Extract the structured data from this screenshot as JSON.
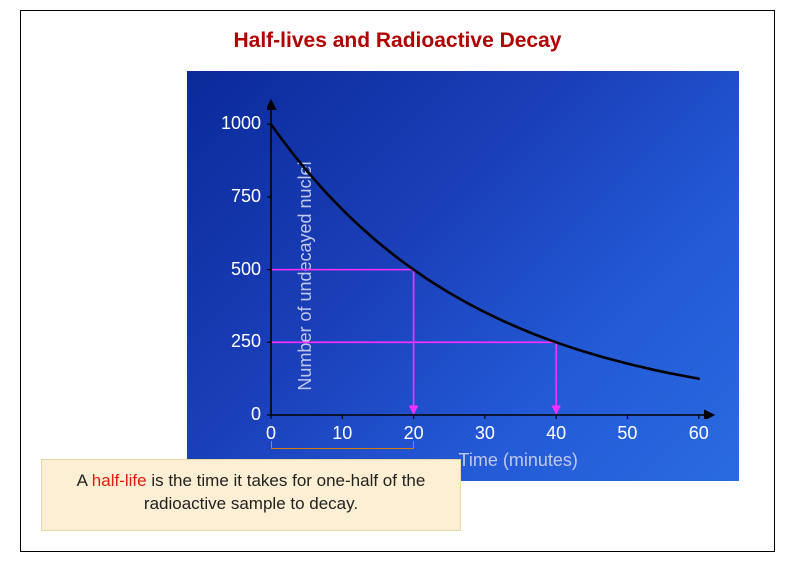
{
  "title": "Half-lives and Radioactive Decay",
  "title_fontsize": 21,
  "title_color": "#b00000",
  "chart": {
    "type": "line",
    "bg_gradient_from": "#0b2a9a",
    "bg_gradient_to": "#2a6be0",
    "xlabel": "Time (minutes)",
    "ylabel": "Number of undecayed nuclei",
    "axis_label_color": "#c2c8e8",
    "axis_label_fontsize": 18,
    "tick_color": "#ffffff",
    "tick_fontsize": 18,
    "axis_line_color": "#000000",
    "axis_line_width": 1.6,
    "arrowheads": true,
    "xlim": [
      0,
      62
    ],
    "ylim": [
      0,
      1080
    ],
    "xticks": [
      0,
      10,
      20,
      30,
      40,
      50,
      60
    ],
    "yticks": [
      0,
      250,
      500,
      750,
      1000
    ],
    "curve": {
      "color": "#000000",
      "width": 2.6,
      "type": "exponential_decay",
      "N0": 1000,
      "half_life": 20,
      "x_points": [
        0,
        5,
        10,
        15,
        20,
        25,
        30,
        35,
        40,
        45,
        50,
        55,
        60
      ],
      "y_points": [
        1000,
        841,
        707,
        595,
        500,
        420,
        354,
        297,
        250,
        210,
        177,
        149,
        125
      ]
    },
    "reference_lines": [
      {
        "color": "#ff2fff",
        "width": 1.6,
        "y": 500,
        "x_from": 0,
        "x_to": 20,
        "drop_to_x_axis": true,
        "arrow": true
      },
      {
        "color": "#ff2fff",
        "width": 1.6,
        "y": 250,
        "x_from": 0,
        "x_to": 40,
        "drop_to_x_axis": true,
        "arrow": true
      }
    ],
    "bracket": {
      "x_from": 0,
      "x_to": 20,
      "color": "#d67b0a",
      "below_axis": true
    }
  },
  "caption": {
    "bg": "#fcefd4",
    "border": "#e9d8a6",
    "fontsize": 17,
    "text_before": "A ",
    "highlight": "half-life",
    "highlight_color": "#e81c0c",
    "text_after": " is the time it takes for one-half of the radioactive sample to decay."
  }
}
